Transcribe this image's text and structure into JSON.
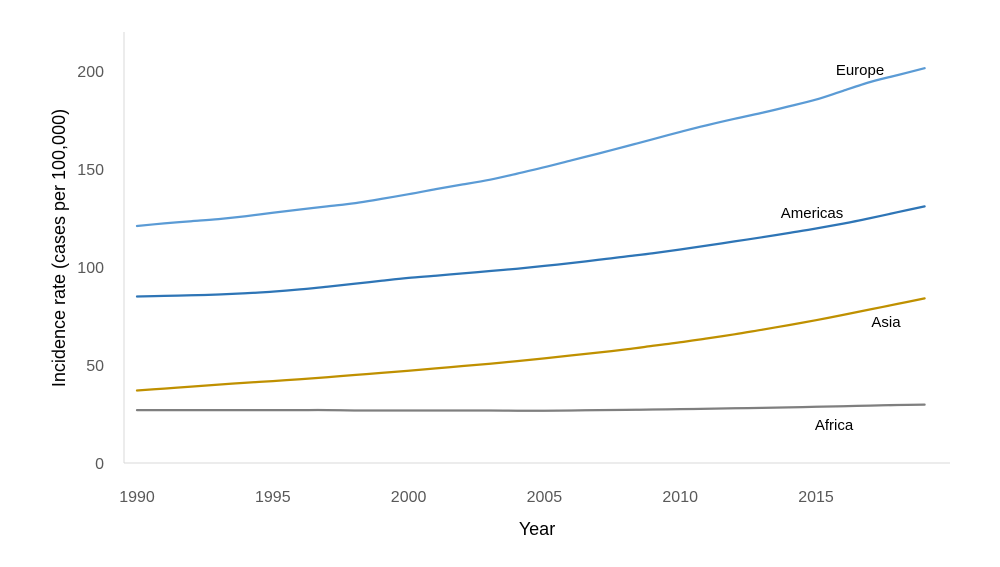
{
  "chart_data": {
    "type": "line",
    "title": "",
    "xlabel": "Year",
    "ylabel": "Incidence rate (cases per 100,000)",
    "xlim": [
      1990,
      2019
    ],
    "ylim": [
      0,
      220
    ],
    "xticks": [
      1990,
      1995,
      2000,
      2005,
      2010,
      2015
    ],
    "yticks": [
      0,
      50,
      100,
      150,
      200
    ],
    "grid": false,
    "legend": "inline labels",
    "x": [
      1990,
      1991,
      1992,
      1993,
      1994,
      1995,
      1996,
      1997,
      1998,
      1999,
      2000,
      2001,
      2002,
      2003,
      2004,
      2005,
      2006,
      2007,
      2008,
      2009,
      2010,
      2011,
      2012,
      2013,
      2014,
      2015,
      2016,
      2017,
      2018,
      2019
    ],
    "series": [
      {
        "name": "Europe",
        "color": "#5b9bd5",
        "values": [
          121,
          122.3,
          123.4,
          124.5,
          126,
          127.7,
          129.4,
          131,
          132.6,
          134.8,
          137.2,
          139.8,
          142.2,
          144.6,
          147.7,
          151,
          154.5,
          158,
          161.6,
          165.3,
          169,
          172.5,
          175.7,
          178.7,
          182,
          185.5,
          190,
          194.5,
          198,
          201.5
        ]
      },
      {
        "name": "Americas",
        "color": "#2e75b6",
        "values": [
          85,
          85.3,
          85.6,
          86,
          86.6,
          87.5,
          88.6,
          90,
          91.5,
          93,
          94.5,
          95.6,
          96.8,
          98,
          99.2,
          100.6,
          102.1,
          103.7,
          105.4,
          107.1,
          109,
          111,
          113.1,
          115.2,
          117.4,
          119.7,
          122.2,
          125,
          128,
          131
        ]
      },
      {
        "name": "Asia",
        "color": "#bf9000",
        "values": [
          37,
          38,
          39,
          40,
          41,
          41.8,
          42.8,
          43.8,
          44.9,
          46,
          47.1,
          48.3,
          49.5,
          50.7,
          52,
          53.4,
          54.9,
          56.4,
          58,
          59.8,
          61.6,
          63.6,
          65.7,
          68,
          70.4,
          72.9,
          75.6,
          78.4,
          81.2,
          84
        ]
      },
      {
        "name": "Africa",
        "color": "#7f7f7f",
        "values": [
          27,
          27,
          27,
          27,
          27,
          27,
          27,
          27,
          26.8,
          26.8,
          26.8,
          26.8,
          26.8,
          26.8,
          26.7,
          26.7,
          26.8,
          27,
          27.1,
          27.3,
          27.5,
          27.7,
          27.9,
          28.1,
          28.4,
          28.7,
          29,
          29.3,
          29.6,
          29.8
        ]
      }
    ]
  }
}
